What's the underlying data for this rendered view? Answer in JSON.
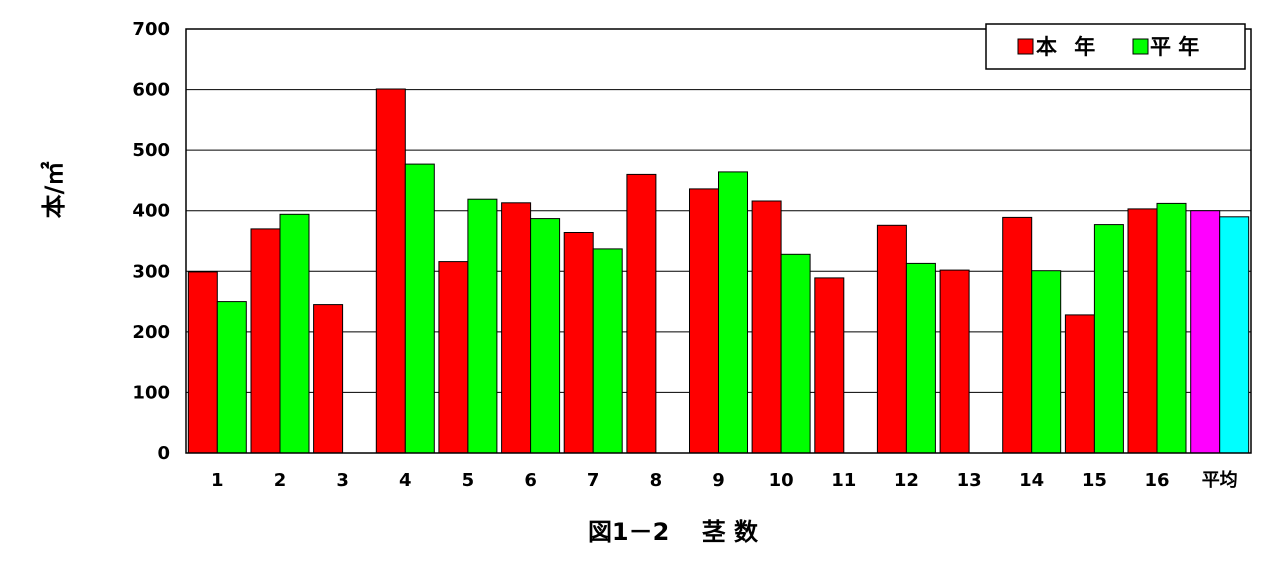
{
  "chart_data": {
    "type": "bar",
    "title": "",
    "caption": "図1－2　 茎 数",
    "ylabel": "本/㎡",
    "xlabel": "",
    "ylim": [
      0,
      700
    ],
    "yticks": [
      "0",
      "100",
      "200",
      "300",
      "400",
      "500",
      "600",
      "700"
    ],
    "grid": true,
    "legend_position": "top-right",
    "categories": [
      "1",
      "2",
      "3",
      "4",
      "5",
      "6",
      "7",
      "8",
      "9",
      "10",
      "11",
      "12",
      "13",
      "14",
      "15",
      "16",
      "平均"
    ],
    "series": [
      {
        "name": "本 年",
        "color": "#ff0000",
        "highlight_color": "#ff00ff",
        "values": [
          299,
          370,
          245,
          601,
          316,
          413,
          364,
          460,
          436,
          416,
          289,
          376,
          302,
          389,
          228,
          403,
          400
        ]
      },
      {
        "name": "平 年",
        "color": "#00ff00",
        "highlight_color": "#00ffff",
        "values": [
          250,
          394,
          null,
          477,
          419,
          387,
          337,
          null,
          464,
          328,
          null,
          313,
          null,
          301,
          377,
          412,
          390
        ]
      }
    ]
  }
}
